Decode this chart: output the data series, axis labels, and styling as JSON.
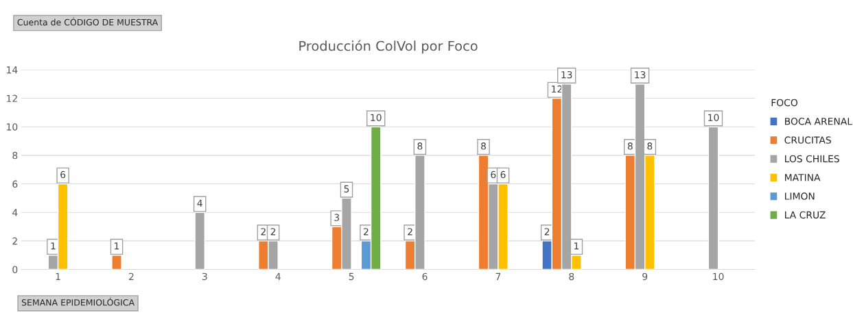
{
  "chart_data": {
    "type": "bar",
    "title": "Producción ColVol por Foco",
    "xlabel": "SEMANA EPIDEMIOLÓGICA",
    "legend_title": "FOCO",
    "annotations": [
      "Cuenta de CÓDIGO DE MUESTRA"
    ],
    "categories": [
      "1",
      "2",
      "3",
      "4",
      "5",
      "6",
      "7",
      "8",
      "9",
      "10"
    ],
    "series": [
      {
        "name": "BOCA ARENAL",
        "color": "#4472c4",
        "values": [
          null,
          null,
          null,
          null,
          null,
          null,
          null,
          2,
          null,
          null
        ]
      },
      {
        "name": "CRUCITAS",
        "color": "#ed7d31",
        "values": [
          null,
          1,
          null,
          2,
          3,
          2,
          8,
          12,
          8,
          null
        ]
      },
      {
        "name": "LOS CHILES",
        "color": "#a5a5a5",
        "values": [
          1,
          null,
          4,
          2,
          5,
          8,
          6,
          13,
          13,
          10
        ]
      },
      {
        "name": "MATINA",
        "color": "#ffc000",
        "values": [
          6,
          null,
          null,
          null,
          null,
          null,
          6,
          1,
          8,
          null
        ]
      },
      {
        "name": "LIMON",
        "color": "#5b9bd5",
        "values": [
          null,
          null,
          null,
          null,
          2,
          null,
          null,
          null,
          null,
          null
        ]
      },
      {
        "name": "LA CRUZ",
        "color": "#70ad47",
        "values": [
          null,
          null,
          null,
          null,
          10,
          null,
          null,
          null,
          null,
          null
        ]
      }
    ],
    "ylim": [
      0,
      14
    ],
    "yticks": [
      0,
      2,
      4,
      6,
      8,
      10,
      12,
      14
    ],
    "grid": "y",
    "legend": "right",
    "data_labels": true
  }
}
